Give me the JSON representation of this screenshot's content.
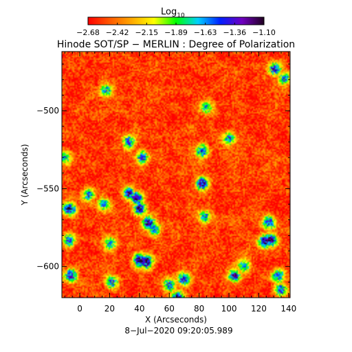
{
  "colorbar": {
    "title_base": "Log",
    "title_sub": "10",
    "ticks": [
      "−2.68",
      "−2.42",
      "−2.15",
      "−1.89",
      "−1.63",
      "−1.36",
      "−1.10"
    ],
    "range": [
      -2.68,
      -1.1
    ],
    "colormap": [
      "#ff0000",
      "#ff5a00",
      "#ffaa00",
      "#ffff00",
      "#00ff00",
      "#00d0ff",
      "#0020ff",
      "#7000c0",
      "#200020"
    ]
  },
  "chart_data": {
    "type": "heatmap",
    "title": "Hinode SOT/SP − MERLIN : Degree of Polarization",
    "xlabel": "X (Arcseconds)",
    "ylabel": "Y (Arcseconds)",
    "xlim": [
      -12,
      141
    ],
    "ylim": [
      -620,
      -462
    ],
    "xticks": [
      0,
      20,
      40,
      60,
      80,
      100,
      120,
      140
    ],
    "xtick_labels": [
      "0",
      "20",
      "40",
      "60",
      "80",
      "100",
      "120",
      "140"
    ],
    "yticks": [
      -500,
      -550,
      -600
    ],
    "ytick_labels": [
      "−500",
      "−550",
      "−600"
    ],
    "value_range": [
      -2.68,
      -1.1
    ],
    "background_level": -2.55,
    "features": [
      {
        "x": -10,
        "y": -530,
        "level": -1.55
      },
      {
        "x": -7,
        "y": -563,
        "level": -1.2
      },
      {
        "x": -7,
        "y": -583,
        "level": -1.45
      },
      {
        "x": -6,
        "y": -606,
        "level": -1.25
      },
      {
        "x": 6,
        "y": -554,
        "level": -1.55
      },
      {
        "x": 16,
        "y": -560,
        "level": -1.6
      },
      {
        "x": 18,
        "y": -487,
        "level": -1.65
      },
      {
        "x": 20,
        "y": -585,
        "level": -1.6
      },
      {
        "x": 22,
        "y": -610,
        "level": -1.55
      },
      {
        "x": 33,
        "y": -520,
        "level": -1.4
      },
      {
        "x": 33,
        "y": -553,
        "level": -1.35
      },
      {
        "x": 38,
        "y": -556,
        "level": -1.15
      },
      {
        "x": 40,
        "y": -563,
        "level": -1.25
      },
      {
        "x": 40,
        "y": -596,
        "level": -1.1
      },
      {
        "x": 45,
        "y": -597,
        "level": -1.15
      },
      {
        "x": 42,
        "y": -530,
        "level": -1.45
      },
      {
        "x": 46,
        "y": -572,
        "level": -1.2
      },
      {
        "x": 50,
        "y": -576,
        "level": -1.5
      },
      {
        "x": 60,
        "y": -612,
        "level": -1.45
      },
      {
        "x": 66,
        "y": -620,
        "level": -1.2
      },
      {
        "x": 70,
        "y": -608,
        "level": -1.35
      },
      {
        "x": 82,
        "y": -526,
        "level": -1.45
      },
      {
        "x": 82,
        "y": -547,
        "level": -1.25
      },
      {
        "x": 84,
        "y": -568,
        "level": -1.55
      },
      {
        "x": 85,
        "y": -498,
        "level": -1.65
      },
      {
        "x": 100,
        "y": -518,
        "level": -1.6
      },
      {
        "x": 104,
        "y": -606,
        "level": -1.35
      },
      {
        "x": 110,
        "y": -600,
        "level": -1.6
      },
      {
        "x": 124,
        "y": -584,
        "level": -1.25
      },
      {
        "x": 127,
        "y": -572,
        "level": -1.35
      },
      {
        "x": 128,
        "y": -583,
        "level": -1.15
      },
      {
        "x": 131,
        "y": -473,
        "level": -1.3
      },
      {
        "x": 133,
        "y": -606,
        "level": -1.4
      },
      {
        "x": 135,
        "y": -615,
        "level": -1.5
      },
      {
        "x": 137,
        "y": -479,
        "level": -1.55
      }
    ],
    "grid": false
  },
  "timestamp": "8−Jul−2020 09:20:05.989"
}
